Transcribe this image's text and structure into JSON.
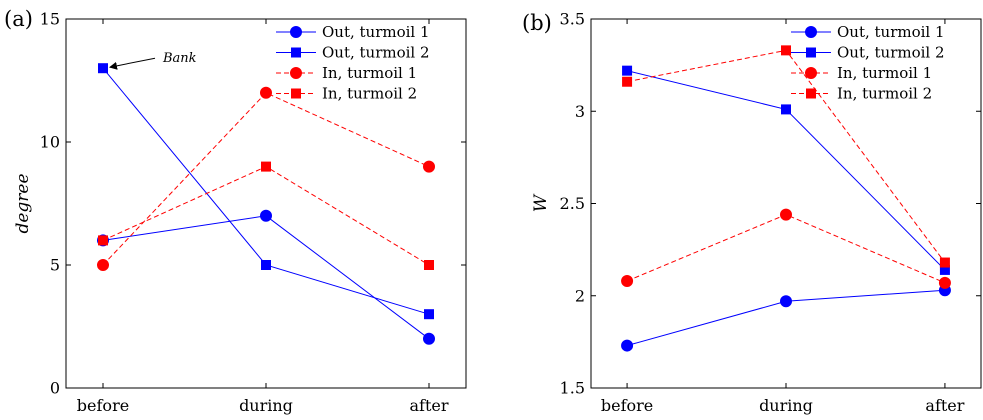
{
  "chart_data": [
    {
      "type": "line",
      "panel_label": "(a)",
      "categories": [
        "before",
        "during",
        "after"
      ],
      "ylabel": "degree",
      "xlabel": "",
      "ylim": [
        0,
        15
      ],
      "yticks": [
        0,
        5,
        10,
        15
      ],
      "grid": false,
      "legend_position": "top-right",
      "series": [
        {
          "name": "Out, turmoil 1",
          "values": [
            6,
            7,
            2
          ],
          "color": "#0000ff",
          "marker": "circle",
          "dash": "solid"
        },
        {
          "name": "Out, turmoil 2",
          "values": [
            13,
            5,
            3
          ],
          "color": "#0000ff",
          "marker": "square",
          "dash": "solid"
        },
        {
          "name": "In, turmoil 1",
          "values": [
            5,
            12,
            9
          ],
          "color": "#ff0000",
          "marker": "circle",
          "dash": "dashed"
        },
        {
          "name": "In, turmoil 2",
          "values": [
            6,
            9,
            5
          ],
          "color": "#ff0000",
          "marker": "square",
          "dash": "dashed"
        }
      ],
      "annotation": {
        "text": "Bank",
        "series": 1,
        "point": 0
      }
    },
    {
      "type": "line",
      "panel_label": "(b)",
      "categories": [
        "before",
        "during",
        "after"
      ],
      "ylabel": "W",
      "xlabel": "",
      "ylim": [
        1.5,
        3.5
      ],
      "yticks": [
        1.5,
        2,
        2.5,
        3,
        3.5
      ],
      "grid": false,
      "legend_position": "top-right",
      "series": [
        {
          "name": "Out, turmoil 1",
          "values": [
            1.73,
            1.97,
            2.03
          ],
          "color": "#0000ff",
          "marker": "circle",
          "dash": "solid"
        },
        {
          "name": "Out, turmoil 2",
          "values": [
            3.22,
            3.01,
            2.14
          ],
          "color": "#0000ff",
          "marker": "square",
          "dash": "solid"
        },
        {
          "name": "In, turmoil 1",
          "values": [
            2.08,
            2.44,
            2.07
          ],
          "color": "#ff0000",
          "marker": "circle",
          "dash": "dashed"
        },
        {
          "name": "In, turmoil 2",
          "values": [
            3.16,
            3.33,
            2.18
          ],
          "color": "#ff0000",
          "marker": "square",
          "dash": "dashed"
        }
      ]
    }
  ]
}
